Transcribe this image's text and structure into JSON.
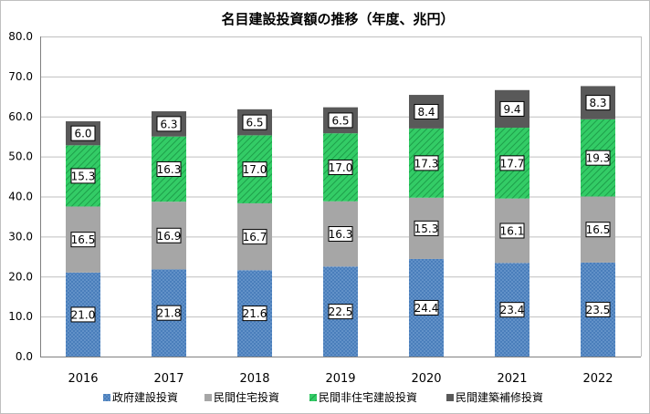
{
  "chart_data": {
    "type": "bar",
    "stacked": true,
    "title": "名目建設投資額の推移（年度、兆円）",
    "xlabel": "",
    "ylabel": "",
    "categories": [
      "2016",
      "2017",
      "2018",
      "2019",
      "2020",
      "2021",
      "2022"
    ],
    "series": [
      {
        "name": "政府建設投資",
        "values": [
          21.0,
          21.8,
          21.6,
          22.5,
          24.4,
          23.4,
          23.5
        ],
        "color": "#4f81bd",
        "pattern": "dots"
      },
      {
        "name": "民間住宅投資",
        "values": [
          16.5,
          16.9,
          16.7,
          16.3,
          15.3,
          16.1,
          16.5
        ],
        "color": "#a6a6a6",
        "pattern": "solid"
      },
      {
        "name": "民間非住宅建設投資",
        "values": [
          15.3,
          16.3,
          17.0,
          17.0,
          17.3,
          17.7,
          19.3
        ],
        "color": "#33cc66",
        "pattern": "hatch"
      },
      {
        "name": "民間建築補修投資",
        "values": [
          6.0,
          6.3,
          6.5,
          6.5,
          8.4,
          9.4,
          8.3
        ],
        "color": "#595959",
        "pattern": "solid"
      }
    ],
    "ylim": [
      0,
      80
    ],
    "yticks": [
      "0.0",
      "10.0",
      "20.0",
      "30.0",
      "40.0",
      "50.0",
      "60.0",
      "70.0",
      "80.0"
    ],
    "grid": true,
    "legend": "bottom",
    "data_labels": true
  }
}
